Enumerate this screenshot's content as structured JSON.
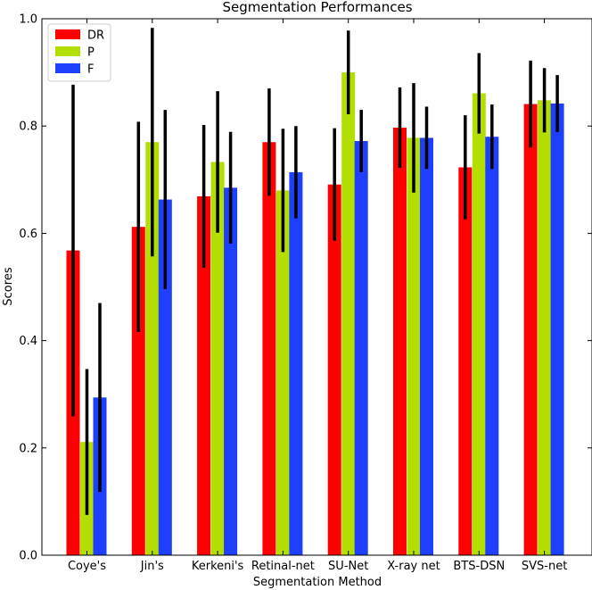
{
  "chart_data": {
    "type": "bar",
    "title": "Segmentation Performances",
    "xlabel": "Segmentation Method",
    "ylabel": "Scores",
    "ylim": [
      0,
      1.0
    ],
    "yticks": [
      "0.0",
      "0.2",
      "0.4",
      "0.6",
      "0.8",
      "1.0"
    ],
    "legend_position": "top-left",
    "grid": false,
    "categories": [
      "Coye's",
      "Jin's",
      "Kerkeni's",
      "Retinal-net",
      "SU-Net",
      "X-ray net",
      "BTS-DSN",
      "SVS-net"
    ],
    "series": [
      {
        "name": "DR",
        "color": "#ff0000",
        "values": [
          0.568,
          0.612,
          0.669,
          0.77,
          0.691,
          0.797,
          0.723,
          0.841
        ],
        "errors": [
          0.309,
          0.196,
          0.133,
          0.1,
          0.105,
          0.075,
          0.097,
          0.081
        ]
      },
      {
        "name": "P",
        "color": "#b2df00",
        "values": [
          0.211,
          0.77,
          0.733,
          0.68,
          0.9,
          0.778,
          0.861,
          0.848
        ],
        "errors": [
          0.136,
          0.213,
          0.132,
          0.115,
          0.078,
          0.102,
          0.075,
          0.06
        ]
      },
      {
        "name": "F",
        "color": "#1f3fff",
        "values": [
          0.294,
          0.663,
          0.685,
          0.714,
          0.772,
          0.778,
          0.78,
          0.842
        ],
        "errors": [
          0.176,
          0.167,
          0.104,
          0.086,
          0.058,
          0.058,
          0.06,
          0.053
        ]
      }
    ]
  }
}
